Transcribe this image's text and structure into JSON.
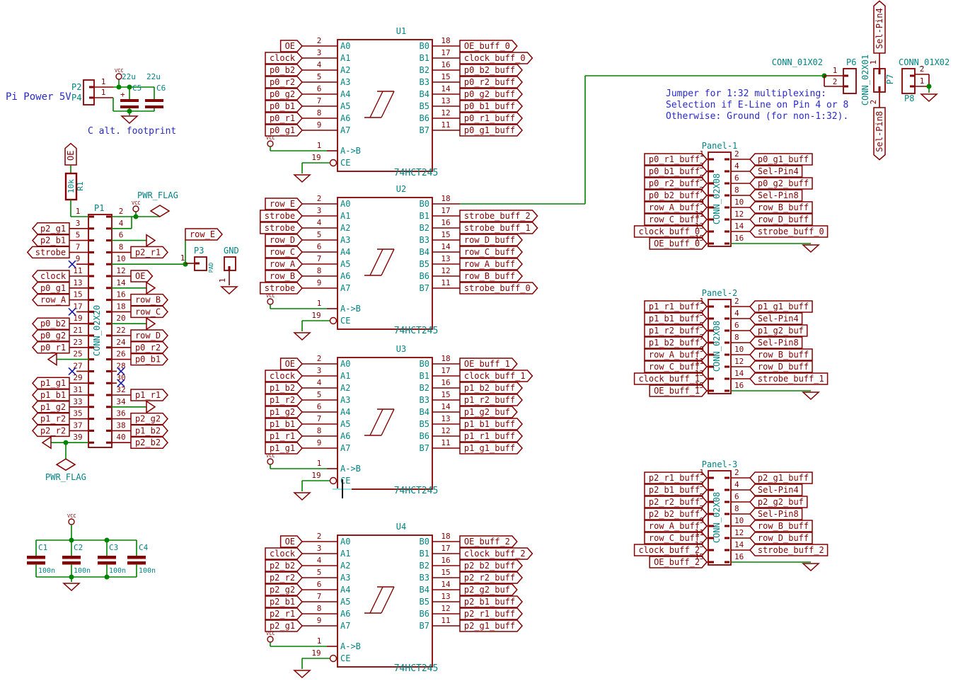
{
  "notes": {
    "pi_power": "Pi Power 5V",
    "c_alt": "C alt. footprint"
  },
  "colors": {
    "wire_green": "#008400",
    "component_maroon": "#840000",
    "field_teal": "#008484",
    "note_blue": "#2a2ac9",
    "noconnect_blue": "#1a1aa6"
  },
  "vcc_text": "VCC",
  "pwr_flag_text": "PWR_FLAG",
  "power_input": {
    "refs": [
      "P2",
      "P4"
    ],
    "pin_numbers": [
      "1",
      "1"
    ],
    "plus": "+",
    "caps": [
      {
        "ref": "C5",
        "value": "22u"
      },
      {
        "ref": "C6",
        "value": "22u"
      }
    ]
  },
  "pullup": {
    "label": "OE",
    "ref": "R1",
    "value": "10k"
  },
  "gpio": {
    "ref": "P1",
    "value": "CONN_02X20",
    "left": [
      {
        "num": "1",
        "type": "pullup_wire"
      },
      {
        "num": "3",
        "type": "label",
        "label": "p2_g1"
      },
      {
        "num": "5",
        "type": "label",
        "label": "p2_b1"
      },
      {
        "num": "7",
        "type": "label",
        "label": "strobe"
      },
      {
        "num": "9",
        "type": "nc"
      },
      {
        "num": "11",
        "type": "label",
        "label": "clock"
      },
      {
        "num": "13",
        "type": "label",
        "label": "p0_g1"
      },
      {
        "num": "15",
        "type": "label",
        "label": "row_A"
      },
      {
        "num": "17",
        "type": "nc"
      },
      {
        "num": "19",
        "type": "label",
        "label": "p0_b2"
      },
      {
        "num": "21",
        "type": "label",
        "label": "p0_g2"
      },
      {
        "num": "23",
        "type": "label",
        "label": "p0_r1"
      },
      {
        "num": "25",
        "type": "gnd"
      },
      {
        "num": "27",
        "type": "nc"
      },
      {
        "num": "29",
        "type": "label",
        "label": "p1_g1"
      },
      {
        "num": "31",
        "type": "label",
        "label": "p1_b1"
      },
      {
        "num": "33",
        "type": "label",
        "label": "p1_g2"
      },
      {
        "num": "35",
        "type": "label",
        "label": "p1_r2"
      },
      {
        "num": "37",
        "type": "label",
        "label": "p2_r2"
      },
      {
        "num": "39",
        "type": "gnd_flag"
      }
    ],
    "right": [
      {
        "num": "2",
        "type": "vcc_flag"
      },
      {
        "num": "4",
        "type": "join_up"
      },
      {
        "num": "6",
        "type": "gnd"
      },
      {
        "num": "8",
        "type": "label",
        "label": "p2_r1"
      },
      {
        "num": "10",
        "type": "p3_net"
      },
      {
        "num": "12",
        "type": "label",
        "label": "OE"
      },
      {
        "num": "14",
        "type": "gnd"
      },
      {
        "num": "16",
        "type": "label",
        "label": "row_B"
      },
      {
        "num": "18",
        "type": "label",
        "label": "row_C"
      },
      {
        "num": "20",
        "type": "gnd"
      },
      {
        "num": "22",
        "type": "label",
        "label": "row_D"
      },
      {
        "num": "24",
        "type": "label",
        "label": "p0_r2"
      },
      {
        "num": "26",
        "type": "label",
        "label": "p0_b1"
      },
      {
        "num": "28",
        "type": "nc"
      },
      {
        "num": "30",
        "type": "nc"
      },
      {
        "num": "32",
        "type": "label",
        "label": "p1_r1"
      },
      {
        "num": "34",
        "type": "gnd"
      },
      {
        "num": "36",
        "type": "label",
        "label": "p2_g2"
      },
      {
        "num": "38",
        "type": "label",
        "label": "p1_b2"
      },
      {
        "num": "40",
        "type": "label",
        "label": "p2_b2"
      }
    ]
  },
  "p3": {
    "ref": "P3",
    "value": "PAD",
    "pin": "1",
    "net_label": "row_E",
    "gnd_ref": "GND",
    "gnd_pin": "1"
  },
  "decoupling": [
    {
      "ref": "C1",
      "value": "100n"
    },
    {
      "ref": "C2",
      "value": "100n"
    },
    {
      "ref": "C3",
      "value": "100n"
    },
    {
      "ref": "C4",
      "value": "100n"
    }
  ],
  "ics": [
    {
      "ref": "U1",
      "value": "74HCT245",
      "dir_pin": {
        "num": "1",
        "name": "A->B"
      },
      "en_pin": {
        "num": "19",
        "name": "CE"
      },
      "left": [
        {
          "num": "2",
          "name": "A0",
          "label": "OE"
        },
        {
          "num": "3",
          "name": "A1",
          "label": "clock"
        },
        {
          "num": "4",
          "name": "A2",
          "label": "p0_b2"
        },
        {
          "num": "5",
          "name": "A3",
          "label": "p0_r2"
        },
        {
          "num": "6",
          "name": "A4",
          "label": "p0_g2"
        },
        {
          "num": "7",
          "name": "A5",
          "label": "p0_b1"
        },
        {
          "num": "8",
          "name": "A6",
          "label": "p0_r1"
        },
        {
          "num": "9",
          "name": "A7",
          "label": "p0_g1"
        }
      ],
      "right": [
        {
          "num": "18",
          "name": "B0",
          "label": "OE_buff_0"
        },
        {
          "num": "17",
          "name": "B1",
          "label": "clock_buff_0"
        },
        {
          "num": "16",
          "name": "B2",
          "label": "p0_b2_buff"
        },
        {
          "num": "15",
          "name": "B3",
          "label": "p0_r2_buff"
        },
        {
          "num": "14",
          "name": "B4",
          "label": "p0_g2_buff"
        },
        {
          "num": "13",
          "name": "B5",
          "label": "p0_b1_buff"
        },
        {
          "num": "12",
          "name": "B6",
          "label": "p0_r1_buff"
        },
        {
          "num": "11",
          "name": "B7",
          "label": "p0_g1_buff"
        }
      ]
    },
    {
      "ref": "U2",
      "value": "74HCT245",
      "dir_pin": {
        "num": "1",
        "name": "A->B"
      },
      "en_pin": {
        "num": "19",
        "name": "CE"
      },
      "left": [
        {
          "num": "2",
          "name": "A0",
          "label": "row_E"
        },
        {
          "num": "3",
          "name": "A1",
          "label": "strobe"
        },
        {
          "num": "4",
          "name": "A2",
          "label": "strobe"
        },
        {
          "num": "5",
          "name": "A3",
          "label": "row_D"
        },
        {
          "num": "6",
          "name": "A4",
          "label": "row_C"
        },
        {
          "num": "7",
          "name": "A5",
          "label": "row_A"
        },
        {
          "num": "8",
          "name": "A6",
          "label": "row_B"
        },
        {
          "num": "9",
          "name": "A7",
          "label": "strobe"
        }
      ],
      "right": [
        {
          "num": "18",
          "name": "B0",
          "label": null
        },
        {
          "num": "17",
          "name": "B1",
          "label": "strobe_buff_2"
        },
        {
          "num": "16",
          "name": "B2",
          "label": "strobe_buff_1"
        },
        {
          "num": "15",
          "name": "B3",
          "label": "row_D_buff"
        },
        {
          "num": "14",
          "name": "B4",
          "label": "row_C_buff"
        },
        {
          "num": "13",
          "name": "B5",
          "label": "row_A_buff"
        },
        {
          "num": "12",
          "name": "B6",
          "label": "row_B_buff"
        },
        {
          "num": "11",
          "name": "B7",
          "label": "strobe_buff_0"
        }
      ]
    },
    {
      "ref": "U3",
      "value": "74HCT245",
      "dir_pin": {
        "num": "1",
        "name": "A->B"
      },
      "en_pin": {
        "num": "19",
        "name": "CE"
      },
      "left": [
        {
          "num": "2",
          "name": "A0",
          "label": "OE"
        },
        {
          "num": "3",
          "name": "A1",
          "label": "clock"
        },
        {
          "num": "4",
          "name": "A2",
          "label": "p1_b2"
        },
        {
          "num": "5",
          "name": "A3",
          "label": "p1_r2"
        },
        {
          "num": "6",
          "name": "A4",
          "label": "p1_g2"
        },
        {
          "num": "7",
          "name": "A5",
          "label": "p1_b1"
        },
        {
          "num": "8",
          "name": "A6",
          "label": "p1_r1"
        },
        {
          "num": "9",
          "name": "A7",
          "label": "p1_g1"
        }
      ],
      "right": [
        {
          "num": "18",
          "name": "B0",
          "label": "OE_buff_1"
        },
        {
          "num": "17",
          "name": "B1",
          "label": "clock_buff_1"
        },
        {
          "num": "16",
          "name": "B2",
          "label": "p1_b2_buff"
        },
        {
          "num": "15",
          "name": "B3",
          "label": "p1_r2_buff"
        },
        {
          "num": "14",
          "name": "B4",
          "label": "p1_g2_buf"
        },
        {
          "num": "13",
          "name": "B5",
          "label": "p1_b1_buff"
        },
        {
          "num": "12",
          "name": "B6",
          "label": "p1_r1_buff"
        },
        {
          "num": "11",
          "name": "B7",
          "label": "p1_g1_buff"
        }
      ]
    },
    {
      "ref": "U4",
      "value": "74HCT245",
      "dir_pin": {
        "num": "1",
        "name": "A->B"
      },
      "en_pin": {
        "num": "19",
        "name": "CE"
      },
      "left": [
        {
          "num": "2",
          "name": "A0",
          "label": "OE"
        },
        {
          "num": "3",
          "name": "A1",
          "label": "clock"
        },
        {
          "num": "4",
          "name": "A2",
          "label": "p2_b2"
        },
        {
          "num": "5",
          "name": "A3",
          "label": "p2_r2"
        },
        {
          "num": "6",
          "name": "A4",
          "label": "p2_g2"
        },
        {
          "num": "7",
          "name": "A5",
          "label": "p2_b1"
        },
        {
          "num": "8",
          "name": "A6",
          "label": "p2_r1"
        },
        {
          "num": "9",
          "name": "A7",
          "label": "p2_g1"
        }
      ],
      "right": [
        {
          "num": "18",
          "name": "B0",
          "label": "OE_buff_2"
        },
        {
          "num": "17",
          "name": "B1",
          "label": "clock_buff_2"
        },
        {
          "num": "16",
          "name": "B2",
          "label": "p2_b2_buff"
        },
        {
          "num": "15",
          "name": "B3",
          "label": "p2_r2_buff"
        },
        {
          "num": "14",
          "name": "B4",
          "label": "p2_g2_buf"
        },
        {
          "num": "13",
          "name": "B5",
          "label": "p2_b1_buff"
        },
        {
          "num": "12",
          "name": "B6",
          "label": "p2_r1_buff"
        },
        {
          "num": "11",
          "name": "B7",
          "label": "p2_g1_buff"
        }
      ]
    }
  ],
  "panels": [
    {
      "ref": "Panel-1",
      "value": "CONN_02X08",
      "left": [
        {
          "num": "1",
          "label": "p0_r1_buff"
        },
        {
          "num": "3",
          "label": "p0_b1_buff"
        },
        {
          "num": "5",
          "label": "p0_r2_buff"
        },
        {
          "num": "7",
          "label": "p0_b2_buff"
        },
        {
          "num": "9",
          "label": "row_A_buff"
        },
        {
          "num": "11",
          "label": "row_C_buff"
        },
        {
          "num": "13",
          "label": "clock_buff_0"
        },
        {
          "num": "15",
          "label": "OE_buff_0"
        }
      ],
      "right": [
        {
          "num": "2",
          "label": "p0_g1_buff"
        },
        {
          "num": "4",
          "label": "Sel-Pin4"
        },
        {
          "num": "6",
          "label": "p0_g2_buff"
        },
        {
          "num": "8",
          "label": "Sel-Pin8"
        },
        {
          "num": "10",
          "label": "row_B_buff"
        },
        {
          "num": "12",
          "label": "row_D_buff"
        },
        {
          "num": "14",
          "label": "strobe_buff_0"
        },
        {
          "num": "16",
          "label": null
        }
      ]
    },
    {
      "ref": "Panel-2",
      "value": "CONN_02X08",
      "left": [
        {
          "num": "1",
          "label": "p1_r1_buff"
        },
        {
          "num": "3",
          "label": "p1_b1_buff"
        },
        {
          "num": "5",
          "label": "p1_r2_buff"
        },
        {
          "num": "7",
          "label": "p1_b2_buff"
        },
        {
          "num": "9",
          "label": "row_A_buff"
        },
        {
          "num": "11",
          "label": "row_C_buff"
        },
        {
          "num": "13",
          "label": "clock_buff_1"
        },
        {
          "num": "15",
          "label": "OE_buff_1"
        }
      ],
      "right": [
        {
          "num": "2",
          "label": "p1_g1_buff"
        },
        {
          "num": "4",
          "label": "Sel-Pin4"
        },
        {
          "num": "6",
          "label": "p1_g2_buf"
        },
        {
          "num": "8",
          "label": "Sel-Pin8"
        },
        {
          "num": "10",
          "label": "row_B_buff"
        },
        {
          "num": "12",
          "label": "row_D_buff"
        },
        {
          "num": "14",
          "label": "strobe_buff_1"
        },
        {
          "num": "16",
          "label": null
        }
      ]
    },
    {
      "ref": "Panel-3",
      "value": "CONN_02X08",
      "left": [
        {
          "num": "1",
          "label": "p2_r1_buff"
        },
        {
          "num": "3",
          "label": "p2_b1_buff"
        },
        {
          "num": "5",
          "label": "p2_r2_buff"
        },
        {
          "num": "7",
          "label": "p2_b2_buff"
        },
        {
          "num": "9",
          "label": "row_A_buff"
        },
        {
          "num": "11",
          "label": "row_C_buff"
        },
        {
          "num": "13",
          "label": "clock_buff_2"
        },
        {
          "num": "15",
          "label": "OE_buff_2"
        }
      ],
      "right": [
        {
          "num": "2",
          "label": "p2_g1_buff"
        },
        {
          "num": "4",
          "label": "Sel-Pin4"
        },
        {
          "num": "6",
          "label": "p2_g2_buf"
        },
        {
          "num": "8",
          "label": "Sel-Pin8"
        },
        {
          "num": "10",
          "label": "row_B_buff"
        },
        {
          "num": "12",
          "label": "row_D_buff"
        },
        {
          "num": "14",
          "label": "strobe_buff_2"
        },
        {
          "num": "16",
          "label": null
        }
      ]
    }
  ],
  "jumper": {
    "note": [
      "Jumper for 1:32 multiplexing:",
      "Selection if E-Line on Pin 4 or 8",
      "Otherwise: Ground (for non-1:32)."
    ],
    "p6": {
      "ref": "P6",
      "value": "CONN_01X02",
      "pins": [
        "1",
        "2"
      ]
    },
    "p7": {
      "ref": "P7",
      "value": "CONN_02X01",
      "pins": [
        "1",
        "2"
      ],
      "top_label": "Sel-Pin4",
      "bottom_label": "Sel-Pin8"
    },
    "p8": {
      "ref": "P8",
      "value": "CONN_01X02",
      "pins": [
        "2",
        "1"
      ]
    }
  }
}
